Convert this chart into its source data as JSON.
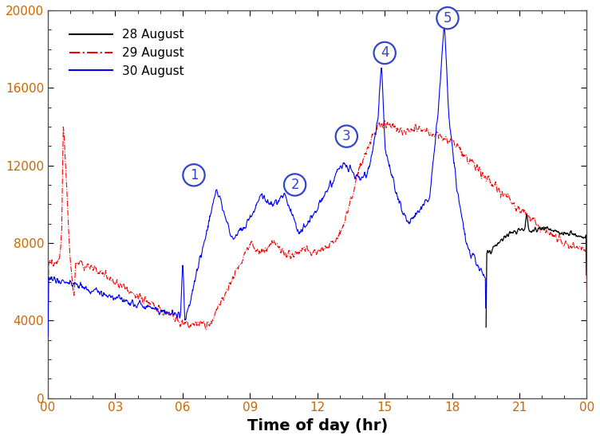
{
  "title": "",
  "xlabel": "Time of day (hr)",
  "ylabel": "",
  "xlim": [
    0,
    24
  ],
  "ylim": [
    0,
    20000
  ],
  "yticks": [
    0,
    4000,
    8000,
    12000,
    16000,
    20000
  ],
  "xticks": [
    0,
    3,
    6,
    9,
    12,
    15,
    18,
    21,
    24
  ],
  "xticklabels": [
    "00",
    "03",
    "06",
    "09",
    "12",
    "15",
    "18",
    "21",
    "00"
  ],
  "legend_labels": [
    "28 August",
    "29 August",
    "30 August"
  ],
  "annotation_labels": [
    "1",
    "2",
    "3",
    "4",
    "5"
  ],
  "colors": {
    "day28": "#000000",
    "day29": "#ff0000",
    "day30": "#0000ff"
  },
  "tick_color": "#cc6600",
  "spine_color": "#888888",
  "xlabel_color": "#000000",
  "background_color": "#ffffff",
  "figsize": [
    7.52,
    5.51
  ],
  "dpi": 100
}
